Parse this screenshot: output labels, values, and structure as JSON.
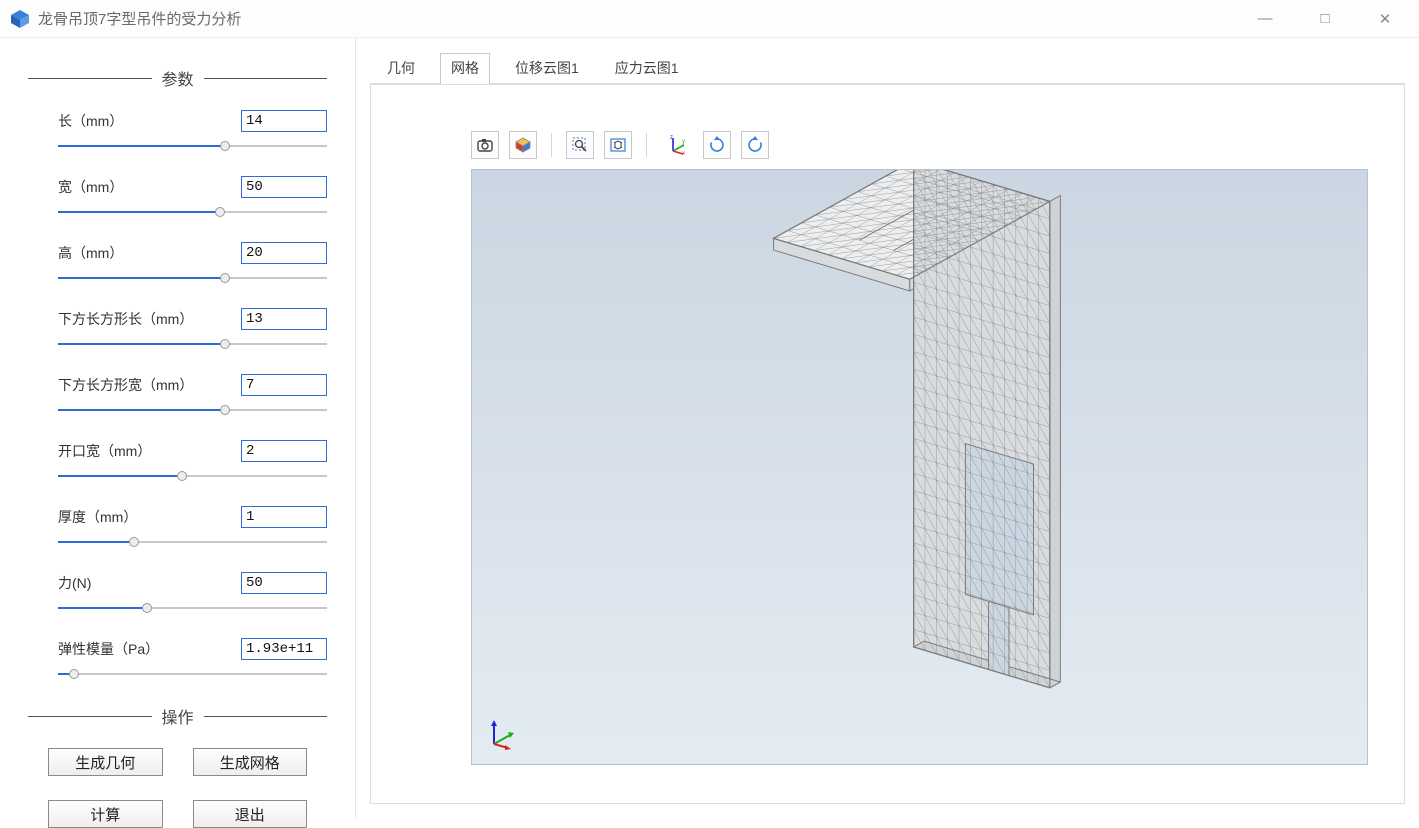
{
  "window": {
    "title": "龙骨吊顶7字型吊件的受力分析"
  },
  "win_controls": {
    "minimize": "—",
    "maximize": "□",
    "close": "✕"
  },
  "sidebar": {
    "section_params": "参数",
    "section_actions": "操作",
    "params": [
      {
        "label": "长（mm）",
        "value": "14",
        "slider_pct": 62
      },
      {
        "label": "宽（mm）",
        "value": "50",
        "slider_pct": 60
      },
      {
        "label": "高（mm）",
        "value": "20",
        "slider_pct": 62
      },
      {
        "label": "下方长方形长（mm）",
        "value": "13",
        "slider_pct": 62
      },
      {
        "label": "下方长方形宽（mm）",
        "value": "7",
        "slider_pct": 62
      },
      {
        "label": "开口宽（mm）",
        "value": "2",
        "slider_pct": 46
      },
      {
        "label": "厚度（mm）",
        "value": "1",
        "slider_pct": 28
      },
      {
        "label": "力(N)",
        "value": "50",
        "slider_pct": 33
      },
      {
        "label": "弹性模量（Pa）",
        "value": "1.93e+11",
        "slider_pct": 6
      }
    ],
    "actions": {
      "gen_geometry": "生成几何",
      "gen_mesh": "生成网格",
      "compute": "计算",
      "exit": "退出"
    }
  },
  "tabs": {
    "items": [
      "几何",
      "网格",
      "位移云图1",
      "应力云图1"
    ],
    "active_index": 1
  },
  "toolbar": {
    "items": [
      {
        "name": "camera-icon"
      },
      {
        "name": "box-mode-icon"
      },
      {
        "name": "sep"
      },
      {
        "name": "zoom-region-icon"
      },
      {
        "name": "fit-view-icon"
      },
      {
        "name": "sep"
      },
      {
        "name": "axes-icon"
      },
      {
        "name": "rotate-cw-icon"
      },
      {
        "name": "rotate-ccw-icon"
      }
    ]
  },
  "colors": {
    "accent": "#2e6bd6",
    "scene_bg_top": "#cbd6e2",
    "scene_bg_bottom": "#e4ebf2",
    "mesh_stroke": "#7a7a7a",
    "mesh_fill": "#d8dcde",
    "mesh_top_fill": "#eceef0"
  },
  "triad": {
    "x_color": "#d22",
    "y_color": "#2a2",
    "z_color": "#22d"
  }
}
